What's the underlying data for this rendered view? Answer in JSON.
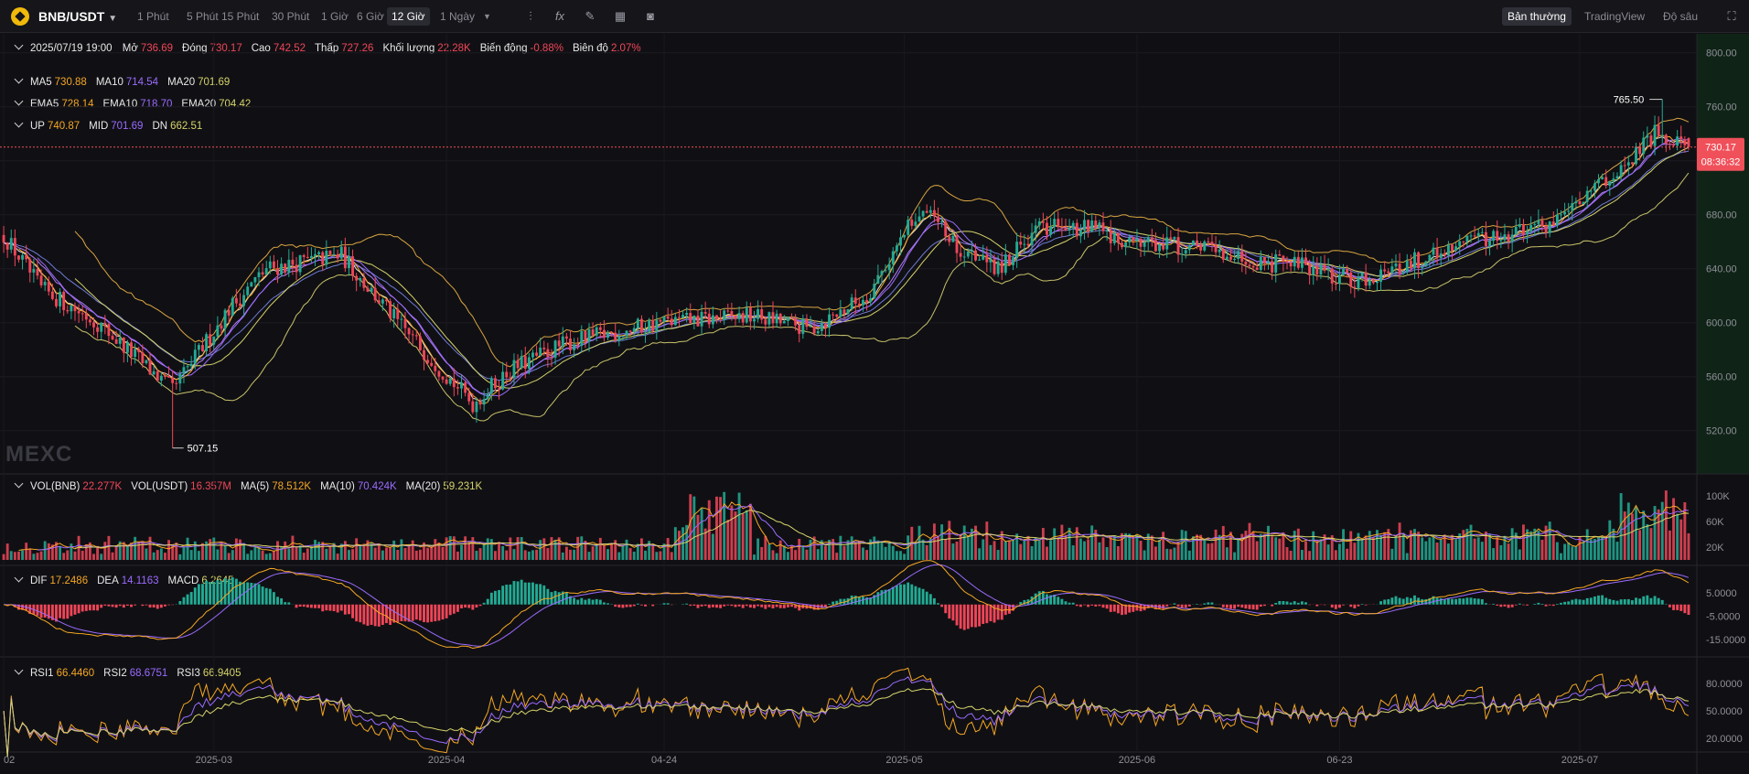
{
  "header": {
    "symbol": "BNB/USDT",
    "intervals": [
      "1 Phút",
      "5 Phút",
      "15 Phút",
      "30 Phút",
      "1 Giờ",
      "6 Giờ",
      "12 Giờ",
      "1 Ngày"
    ],
    "active_interval": "12 Giờ",
    "modes": [
      "Bản thường",
      "TradingView",
      "Độ sâu"
    ],
    "active_mode": "Bản thường"
  },
  "ohlc": {
    "date": "2025/07/19 19:00",
    "open_label": "Mở",
    "open": "736.69",
    "close_label": "Đóng",
    "close": "730.17",
    "high_label": "Cao",
    "high": "742.52",
    "low_label": "Thấp",
    "low": "727.26",
    "volume_label": "Khối lượng",
    "volume": "22.28K",
    "change_label": "Biến động",
    "change": "-0.88%",
    "amplitude_label": "Biên độ",
    "amplitude": "2.07%"
  },
  "overlays": {
    "ma": [
      {
        "name": "MA5",
        "value": "730.88"
      },
      {
        "name": "MA10",
        "value": "714.54"
      },
      {
        "name": "MA20",
        "value": "701.69"
      }
    ],
    "ema": [
      {
        "name": "EMA5",
        "value": "728.14"
      },
      {
        "name": "EMA10",
        "value": "718.70"
      },
      {
        "name": "EMA20",
        "value": "704.42"
      }
    ],
    "boll": [
      {
        "name": "UP",
        "value": "740.87"
      },
      {
        "name": "MID",
        "value": "701.69"
      },
      {
        "name": "DN",
        "value": "662.51"
      }
    ]
  },
  "volume_legend": [
    {
      "name": "VOL(BNB)",
      "value": "22.277K"
    },
    {
      "name": "VOL(USDT)",
      "value": "16.357M"
    },
    {
      "name": "MA(5)",
      "value": "78.512K"
    },
    {
      "name": "MA(10)",
      "value": "70.424K"
    },
    {
      "name": "MA(20)",
      "value": "59.231K"
    }
  ],
  "macd_legend": [
    {
      "name": "DIF",
      "value": "17.2486"
    },
    {
      "name": "DEA",
      "value": "14.1163"
    },
    {
      "name": "MACD",
      "value": "6.2645"
    }
  ],
  "rsi_legend": [
    {
      "name": "RSI1",
      "value": "66.4460"
    },
    {
      "name": "RSI2",
      "value": "68.6751"
    },
    {
      "name": "RSI3",
      "value": "66.9405"
    }
  ],
  "price_tag": {
    "value": "730.17",
    "countdown": "08:36:32"
  },
  "watermark": "MEXC",
  "colors": {
    "up": "#22ab94",
    "down": "#f04658",
    "ma5": "#f5a623",
    "ma10": "#9b6bff",
    "ma20": "#d6d36a",
    "boll": "#d9a441",
    "accent_red": "#f0505a",
    "bg": "#101014"
  },
  "chart_data": {
    "type": "candlestick",
    "interval": "12h",
    "price_axis": {
      "ticks": [
        "800.00",
        "760.00",
        "720.00",
        "680.00",
        "640.00",
        "600.00",
        "560.00",
        "520.00"
      ],
      "range": [
        490,
        812
      ]
    },
    "volume_axis": {
      "ticks": [
        "100K",
        "60K",
        "20K"
      ],
      "range": [
        0,
        120000
      ]
    },
    "macd_axis": {
      "ticks": [
        "5.0000",
        "-5.0000",
        "-15.0000"
      ],
      "range": [
        -20,
        12
      ]
    },
    "rsi_axis": {
      "ticks": [
        "80.0000",
        "50.0000",
        "20.0000"
      ],
      "range": [
        5,
        95
      ]
    },
    "x_axis_labels": [
      {
        "label": "02",
        "candle": 0
      },
      {
        "label": "2025-03",
        "candle": 56
      },
      {
        "label": "2025-04",
        "candle": 118
      },
      {
        "label": "04-24",
        "candle": 176
      },
      {
        "label": "2025-05",
        "candle": 240
      },
      {
        "label": "2025-06",
        "candle": 302
      },
      {
        "label": "06-23",
        "candle": 356
      },
      {
        "label": "2025-07",
        "candle": 420
      }
    ],
    "annotations": [
      {
        "label": "765.50",
        "kind": "high",
        "candle": 442,
        "price": 765.5
      },
      {
        "label": "507.15",
        "kind": "low",
        "candle": 45,
        "price": 507.15
      }
    ],
    "last_price": 730.17,
    "candle_count": 450,
    "start_price": 665,
    "anchors": [
      [
        0,
        665
      ],
      [
        10,
        625
      ],
      [
        25,
        600
      ],
      [
        45,
        550
      ],
      [
        60,
        610
      ],
      [
        70,
        640
      ],
      [
        90,
        650
      ],
      [
        105,
        600
      ],
      [
        125,
        540
      ],
      [
        135,
        565
      ],
      [
        150,
        585
      ],
      [
        175,
        600
      ],
      [
        200,
        605
      ],
      [
        215,
        595
      ],
      [
        230,
        620
      ],
      [
        245,
        688
      ],
      [
        255,
        650
      ],
      [
        265,
        640
      ],
      [
        275,
        670
      ],
      [
        290,
        670
      ],
      [
        300,
        660
      ],
      [
        320,
        655
      ],
      [
        335,
        645
      ],
      [
        350,
        640
      ],
      [
        360,
        630
      ],
      [
        370,
        640
      ],
      [
        390,
        660
      ],
      [
        410,
        670
      ],
      [
        425,
        700
      ],
      [
        440,
        740
      ],
      [
        449,
        730
      ]
    ]
  }
}
